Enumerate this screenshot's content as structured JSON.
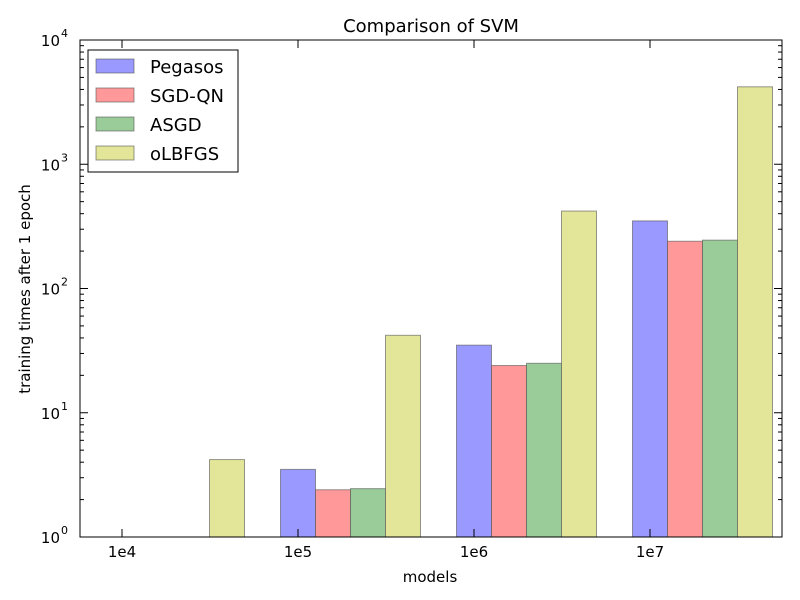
{
  "chart_data": {
    "type": "bar",
    "title": "Comparison of SVM",
    "xlabel": "models",
    "ylabel": "training times after 1 epoch",
    "yscale": "log",
    "ylim": [
      1,
      10000
    ],
    "y_ticks": [
      {
        "value": 1,
        "base": "10",
        "exp": "0"
      },
      {
        "value": 10,
        "base": "10",
        "exp": "1"
      },
      {
        "value": 100,
        "base": "10",
        "exp": "2"
      },
      {
        "value": 1000,
        "base": "10",
        "exp": "3"
      },
      {
        "value": 10000,
        "base": "10",
        "exp": "4"
      }
    ],
    "categories": [
      "1e4",
      "1e5",
      "1e6",
      "1e7"
    ],
    "legend_position": "top-left",
    "grid": false,
    "series": [
      {
        "name": "Pegasos",
        "color": "#9999ff",
        "values": [
          null,
          3.5,
          35,
          350
        ]
      },
      {
        "name": "SGD-QN",
        "color": "#ff9999",
        "values": [
          null,
          2.4,
          24,
          240
        ]
      },
      {
        "name": "ASGD",
        "color": "#99cc99",
        "values": [
          null,
          2.45,
          25,
          245
        ]
      },
      {
        "name": "oLBFGS",
        "color": "#e3e599",
        "values": [
          4.2,
          42,
          420,
          4200
        ]
      }
    ]
  }
}
